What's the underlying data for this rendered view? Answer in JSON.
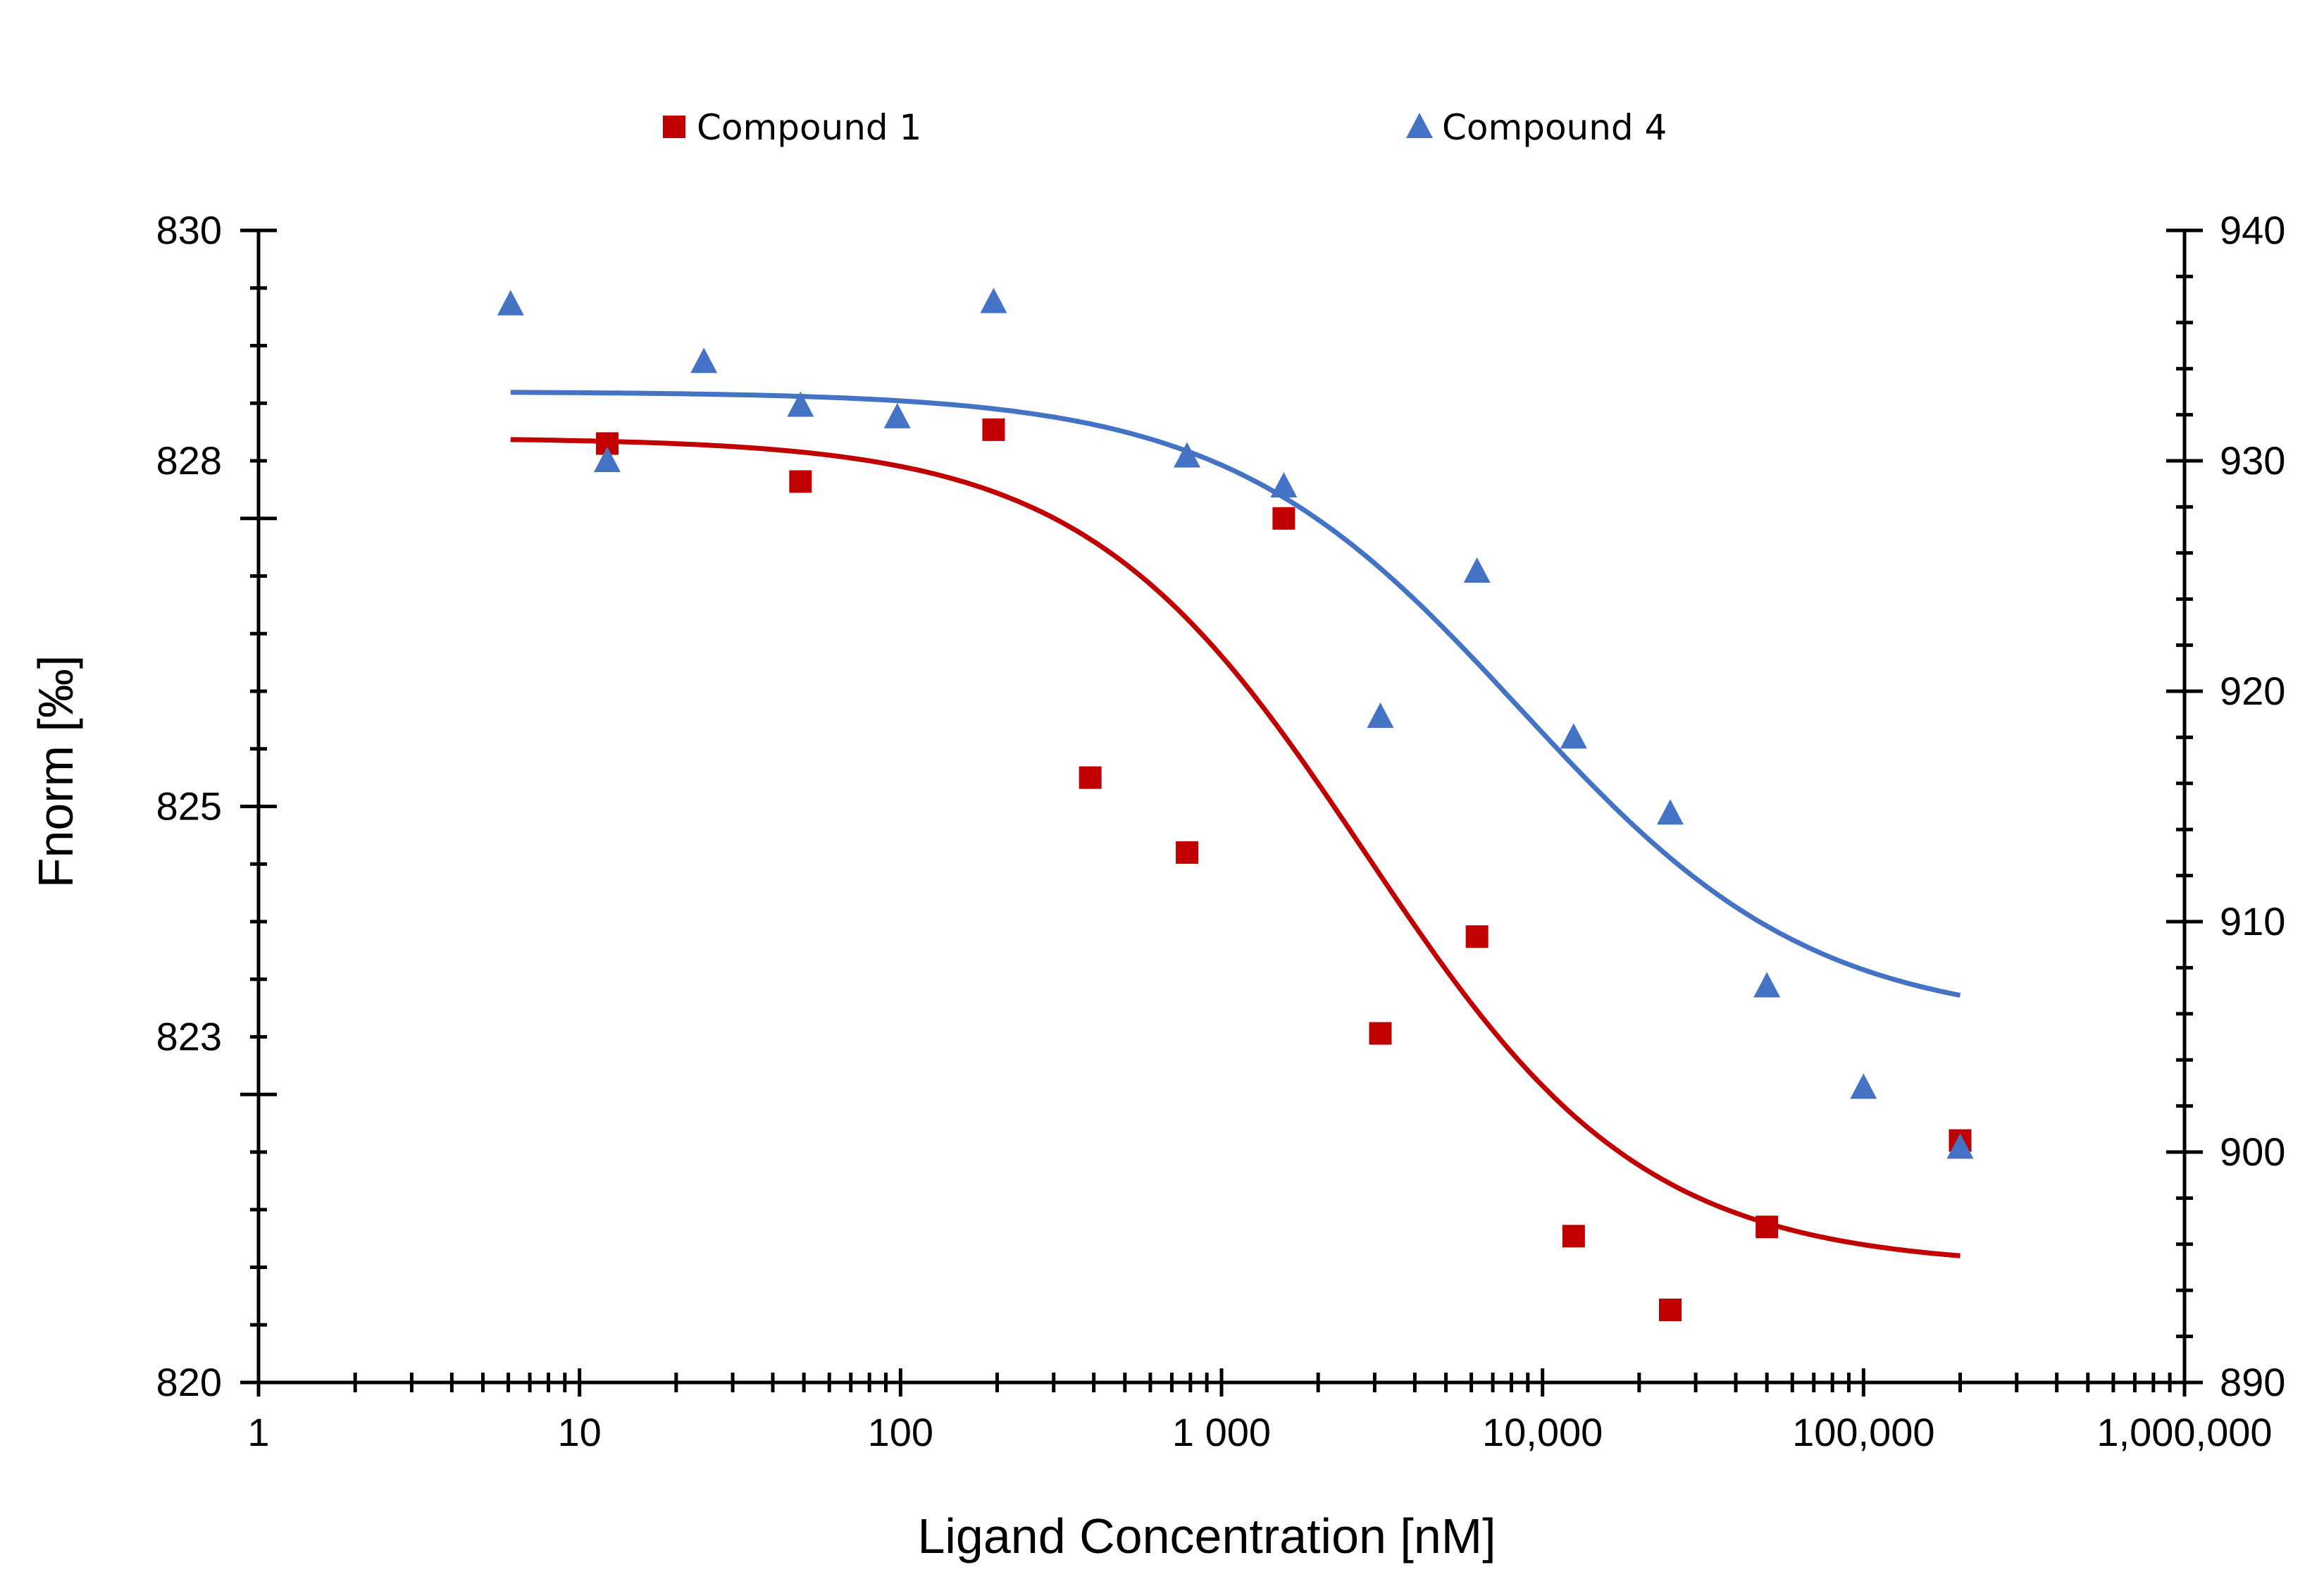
{
  "chart_data": {
    "type": "scatter",
    "title": "",
    "xlabel": "Ligand Concentration [nM]",
    "ylabel": "Fnorm [‰]",
    "x_scale": "log",
    "xlim": [
      1,
      1000000
    ],
    "ylim_left": [
      820,
      830
    ],
    "ylim_right": [
      890,
      940
    ],
    "x_ticks": [
      {
        "value": 1,
        "label": "1"
      },
      {
        "value": 10,
        "label": "10"
      },
      {
        "value": 100,
        "label": "100"
      },
      {
        "value": 1000,
        "label": "1 000"
      },
      {
        "value": 10000,
        "label": "10,000"
      },
      {
        "value": 100000,
        "label": "100,000"
      },
      {
        "value": 1000000,
        "label": "1,000,000"
      }
    ],
    "y_left_ticks": [
      {
        "value": 820,
        "label": "820"
      },
      {
        "value": 823,
        "label": "823"
      },
      {
        "value": 825,
        "label": "825"
      },
      {
        "value": 828,
        "label": "828"
      },
      {
        "value": 830,
        "label": "830"
      }
    ],
    "y_right_ticks": [
      {
        "value": 890,
        "label": "890"
      },
      {
        "value": 900,
        "label": "900"
      },
      {
        "value": 910,
        "label": "910"
      },
      {
        "value": 920,
        "label": "920"
      },
      {
        "value": 930,
        "label": "930"
      },
      {
        "value": 940,
        "label": "940"
      }
    ],
    "legend_position": "top",
    "series": [
      {
        "name": "Compound 1",
        "axis": "left",
        "marker": "square",
        "color": "#C00000",
        "x": [
          12.2,
          48.8,
          195,
          390,
          781,
          1563,
          3125,
          6250,
          12500,
          25000,
          50000,
          200000
        ],
        "y": [
          828.15,
          827.82,
          828.27,
          825.25,
          824.6,
          827.5,
          823.03,
          823.87,
          821.27,
          820.63,
          821.35,
          822.1
        ],
        "fit": {
          "bottom": 821.0,
          "top": 828.2,
          "ec50": 2800,
          "hill": 1.0,
          "x_range": [
            6.1,
            200000
          ]
        }
      },
      {
        "name": "Compound 4",
        "axis": "right",
        "marker": "triangle",
        "color": "#4472C4",
        "x": [
          6.1,
          12.2,
          24.4,
          48.8,
          97.7,
          195,
          781,
          1563,
          3125,
          6250,
          12500,
          25000,
          50000,
          100000,
          200000
        ],
        "y": [
          936.8,
          930.0,
          934.3,
          932.4,
          931.9,
          936.9,
          930.2,
          928.9,
          918.9,
          925.2,
          918.0,
          914.7,
          907.2,
          902.8,
          900.2
        ],
        "fit": {
          "bottom": 905.5,
          "top": 933.0,
          "ec50": 8500,
          "hill": 0.95,
          "x_range": [
            6.1,
            200000
          ]
        }
      }
    ]
  }
}
